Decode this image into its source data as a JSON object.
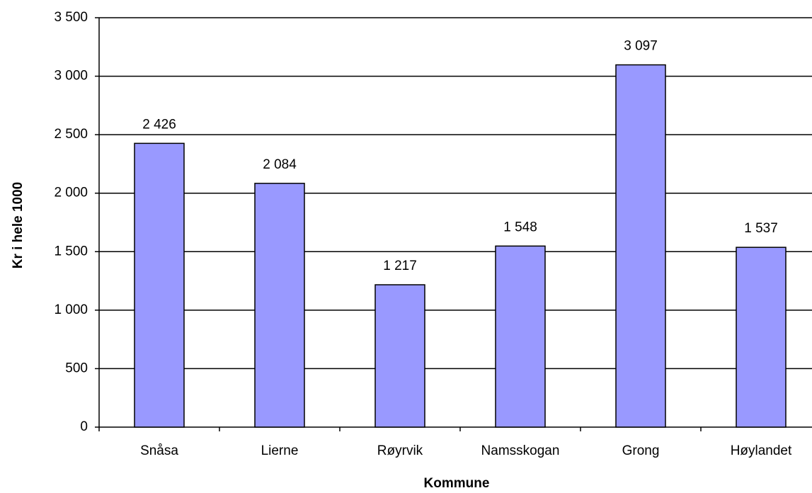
{
  "chart_data": {
    "type": "bar",
    "x_label": "Kommune",
    "y_label": "Kr i hele 1000",
    "categories": [
      "Snåsa",
      "Lierne",
      "Røyrvik",
      "Namsskogan",
      "Grong",
      "Høylandet"
    ],
    "values": [
      2426,
      2084,
      1217,
      1548,
      3097,
      1537
    ],
    "value_labels": [
      "2 426",
      "2 084",
      "1 217",
      "1 548",
      "3 097",
      "1 537"
    ],
    "color": "#9999ff",
    "ylim": [
      0,
      3500
    ],
    "yticks": [
      0,
      500,
      {
        "value": 1000,
        "label": "1 000"
      },
      {
        "value": 1500,
        "label": "1 500"
      },
      {
        "value": 2000,
        "label": "2 000"
      },
      {
        "value": 2500,
        "label": "2 500"
      },
      {
        "value": 3000,
        "label": "3 000"
      },
      {
        "value": 3500,
        "label": "3 500"
      }
    ],
    "grid": true
  }
}
